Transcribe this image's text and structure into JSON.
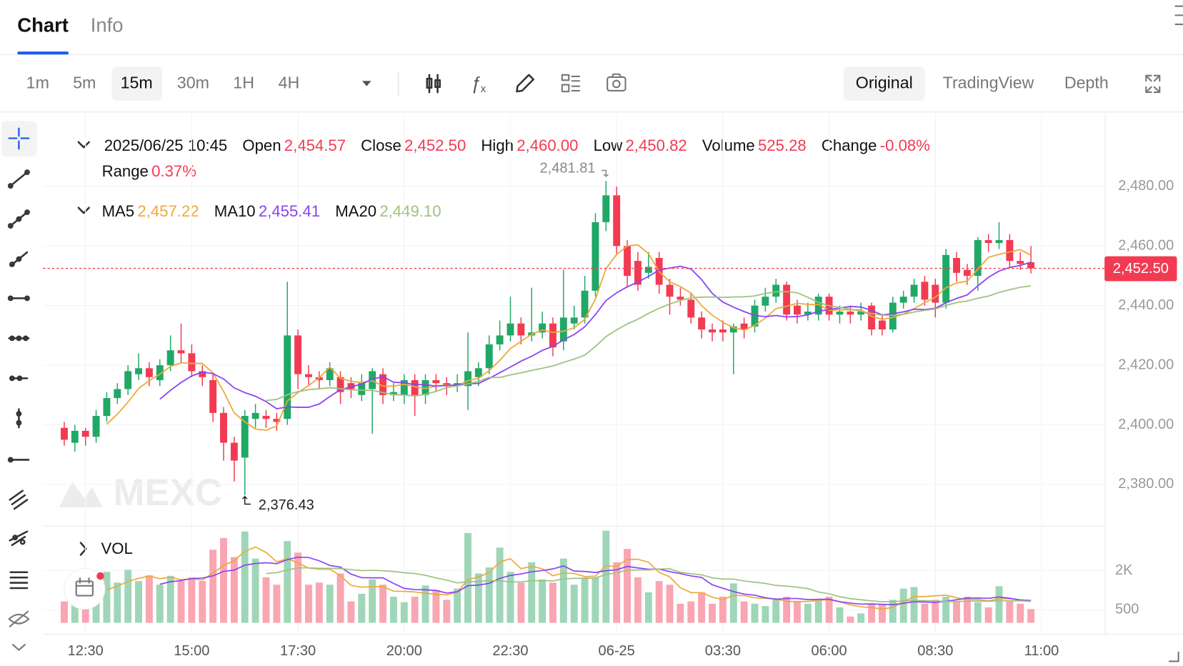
{
  "tabs": [
    "Chart",
    "Info"
  ],
  "intervals": [
    "1m",
    "5m",
    "15m",
    "30m",
    "1H",
    "4H"
  ],
  "views": [
    "Original",
    "TradingView",
    "Depth"
  ],
  "legend": {
    "date": "2025/06/25 10:45",
    "items": [
      {
        "label": "Open",
        "value": "2,454.57"
      },
      {
        "label": "Close",
        "value": "2,452.50"
      },
      {
        "label": "High",
        "value": "2,460.00"
      },
      {
        "label": "Low",
        "value": "2,450.82"
      },
      {
        "label": "Volume",
        "value": "525.28"
      },
      {
        "label": "Change",
        "value": "-0.08%"
      }
    ],
    "range": {
      "label": "Range",
      "value": "0.37%"
    }
  },
  "watermark": "MEXC",
  "chart_data": {
    "type": "candlestick",
    "up_color": "#20a866",
    "down_color": "#f23b52",
    "open": [
      2399,
      2394,
      2398,
      2396,
      2403,
      2409,
      2412,
      2417,
      2419,
      2415,
      2420,
      2425,
      2424,
      2418,
      2415,
      2404,
      2394,
      2389,
      2402,
      2403,
      2402,
      2402,
      2430,
      2417,
      2416,
      2415,
      2416,
      2414,
      2410,
      2412,
      2417,
      2410,
      2410,
      2415,
      2410,
      2415,
      2414,
      2413,
      2413,
      2416,
      2419,
      2427,
      2430,
      2434,
      2430,
      2431,
      2434,
      2428,
      2434,
      2436,
      2445,
      2468,
      2477,
      2460,
      2455,
      2451,
      2456,
      2447,
      2443,
      2442,
      2436,
      2432,
      2432,
      2431,
      2434,
      2433,
      2440,
      2443,
      2447,
      2440,
      2437,
      2437,
      2443,
      2437,
      2438,
      2437,
      2440,
      2435,
      2432,
      2441,
      2443,
      2448,
      2447,
      2441,
      2456,
      2452,
      2450,
      2462,
      2461,
      2462,
      2455,
      2454.57
    ],
    "high": [
      2401,
      2400,
      2399,
      2405,
      2411,
      2414,
      2420,
      2424,
      2421,
      2422,
      2430,
      2434,
      2427,
      2420,
      2417,
      2406,
      2396,
      2405,
      2407,
      2405,
      2404,
      2448,
      2432,
      2420,
      2418,
      2421,
      2418,
      2416,
      2417,
      2419,
      2419,
      2414,
      2417,
      2417,
      2417,
      2417,
      2416,
      2417,
      2431,
      2421,
      2430,
      2435,
      2443,
      2436,
      2446,
      2438,
      2436,
      2452,
      2440,
      2450,
      2471,
      2481.81,
      2480,
      2462,
      2458,
      2458,
      2458,
      2449,
      2446,
      2444,
      2438,
      2434,
      2435,
      2434,
      2436,
      2442,
      2446,
      2449,
      2448,
      2442,
      2441,
      2444,
      2444,
      2440,
      2440,
      2441,
      2441,
      2437,
      2443,
      2445,
      2449,
      2450,
      2449,
      2459,
      2458,
      2454,
      2463,
      2464,
      2468,
      2464,
      2458,
      2460.0
    ],
    "low": [
      2393,
      2391,
      2393,
      2394,
      2401,
      2407,
      2410,
      2415,
      2413,
      2413,
      2418,
      2421,
      2416,
      2413,
      2401,
      2388,
      2381,
      2376.43,
      2399,
      2399,
      2398,
      2400,
      2412,
      2413,
      2412,
      2413,
      2407,
      2409,
      2408,
      2397,
      2407,
      2408,
      2407,
      2403,
      2407,
      2411,
      2410,
      2411,
      2405,
      2413,
      2417,
      2425,
      2428,
      2427,
      2428,
      2429,
      2423,
      2425,
      2432,
      2434,
      2443,
      2465,
      2457,
      2446,
      2445,
      2449,
      2444,
      2437,
      2440,
      2434,
      2429,
      2428,
      2428,
      2417,
      2429,
      2431,
      2438,
      2441,
      2435,
      2434,
      2435,
      2435,
      2435,
      2434,
      2434,
      2435,
      2430,
      2430,
      2431,
      2439,
      2441,
      2440,
      2436,
      2439,
      2448,
      2447,
      2445,
      2458,
      2459,
      2453,
      2452,
      2450.82
    ],
    "close": [
      2395,
      2398,
      2396,
      2403,
      2409,
      2412,
      2418,
      2419,
      2416,
      2420,
      2425,
      2424,
      2418,
      2416,
      2404,
      2394,
      2388,
      2403,
      2404,
      2402,
      2401,
      2430,
      2417,
      2416,
      2415,
      2419,
      2411,
      2412,
      2414,
      2418,
      2410,
      2411,
      2415,
      2410,
      2415,
      2414,
      2413,
      2414,
      2418,
      2419,
      2427,
      2430,
      2434,
      2430,
      2431,
      2434,
      2426,
      2436,
      2436,
      2445,
      2468,
      2477,
      2460,
      2450,
      2447,
      2453,
      2447,
      2443,
      2442,
      2436,
      2432,
      2431,
      2431,
      2433,
      2432,
      2440,
      2443,
      2447,
      2437,
      2437,
      2438,
      2443,
      2437,
      2438,
      2437,
      2438,
      2432,
      2432,
      2441,
      2443,
      2447,
      2442,
      2441,
      2457,
      2451,
      2450,
      2462,
      2461,
      2462,
      2455,
      2454,
      2452.5
    ],
    "volume": [
      820,
      1140,
      1000,
      1400,
      1950,
      1540,
      2030,
      1600,
      1820,
      1460,
      1800,
      1600,
      1740,
      1600,
      2800,
      3250,
      2520,
      3500,
      2460,
      1740,
      1460,
      3130,
      2690,
      1460,
      1540,
      1460,
      1890,
      820,
      1110,
      1660,
      1460,
      1000,
      790,
      1000,
      1430,
      1250,
      880,
      1310,
      3440,
      1890,
      2120,
      2880,
      1950,
      1540,
      2320,
      1660,
      1540,
      2460,
      1460,
      1740,
      1740,
      3530,
      2320,
      2830,
      1740,
      1170,
      1600,
      1460,
      730,
      820,
      1170,
      730,
      1000,
      1510,
      820,
      730,
      640,
      880,
      1000,
      820,
      730,
      880,
      1000,
      590,
      240,
      360,
      730,
      730,
      880,
      1310,
      1370,
      730,
      880,
      1000,
      820,
      1000,
      790,
      590,
      1400,
      820,
      730,
      525.28
    ],
    "ylim": [
      2366.5,
      2504.5
    ],
    "yticks": [
      {
        "value": 2380,
        "label": "2,380.00"
      },
      {
        "value": 2400,
        "label": "2,400.00"
      },
      {
        "value": 2420,
        "label": "2,420.00"
      },
      {
        "value": 2440,
        "label": "2,440.00"
      },
      {
        "value": 2460,
        "label": "2,460.00"
      },
      {
        "value": 2480,
        "label": "2,480.00"
      }
    ],
    "y2lim": [
      0,
      3700
    ],
    "y2ticks": [
      500,
      {
        "value": 2000,
        "label": "2K"
      }
    ],
    "xlim": [
      -2,
      98
    ],
    "xticks": [
      {
        "value": 2,
        "label": "12:30"
      },
      {
        "value": 12,
        "label": "15:00"
      },
      {
        "value": 22,
        "label": "17:30"
      },
      {
        "value": 32,
        "label": "20:00"
      },
      {
        "value": 42,
        "label": "22:30"
      },
      {
        "value": 52,
        "label": "06-25"
      },
      {
        "value": 62,
        "label": "03:30"
      },
      {
        "value": 72,
        "label": "06:00"
      },
      {
        "value": 82,
        "label": "08:30"
      },
      {
        "value": 92,
        "label": "11:00"
      }
    ],
    "grid": true,
    "ma": [
      {
        "name": "MA5",
        "period": 5,
        "color": "#eea83a",
        "value_label": "2,457.22"
      },
      {
        "name": "MA10",
        "period": 10,
        "color": "#8a44f2",
        "value_label": "2,455.41"
      },
      {
        "name": "MA20",
        "period": 20,
        "color": "#9fc27f",
        "value_label": "2,449.10"
      }
    ],
    "volume_label": "VOL",
    "volume_ma": [
      {
        "period": 5,
        "color": "#eea83a"
      },
      {
        "period": 10,
        "color": "#8a44f2"
      },
      {
        "period": 20,
        "color": "#9fc27f"
      }
    ],
    "high_label": "2,481.81",
    "low_label": "2,376.43",
    "price_label": "2,452.50"
  }
}
